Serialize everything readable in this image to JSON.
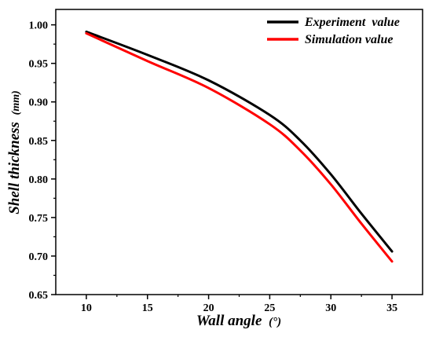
{
  "chart_data": {
    "type": "line",
    "xlabel": "Wall angle",
    "xlabel_unit": "(°)",
    "ylabel": "Shell thickness",
    "ylabel_unit": "(mm)",
    "xlim": [
      7.5,
      37.5
    ],
    "ylim": [
      0.65,
      1.02
    ],
    "xticks": [
      10,
      15,
      20,
      25,
      30,
      35
    ],
    "yticks": [
      0.65,
      0.7,
      0.75,
      0.8,
      0.85,
      0.9,
      0.95,
      1.0
    ],
    "ytick_labels": [
      "0.65",
      "0.70",
      "0.75",
      "0.80",
      "0.85",
      "0.90",
      "0.95",
      "1.00"
    ],
    "grid": false,
    "legend_position": "top-right",
    "series": [
      {
        "name": "Experiment  value",
        "color": "#000000",
        "x": [
          10,
          15,
          20,
          25,
          27.5,
          30,
          32.5,
          35
        ],
        "y": [
          0.991,
          0.961,
          0.928,
          0.883,
          0.85,
          0.806,
          0.755,
          0.706
        ]
      },
      {
        "name": "Simulation value",
        "color": "#ff0000",
        "x": [
          10,
          15,
          20,
          25,
          27.5,
          30,
          32.5,
          35
        ],
        "y": [
          0.989,
          0.953,
          0.918,
          0.871,
          0.837,
          0.793,
          0.742,
          0.693
        ]
      }
    ]
  }
}
